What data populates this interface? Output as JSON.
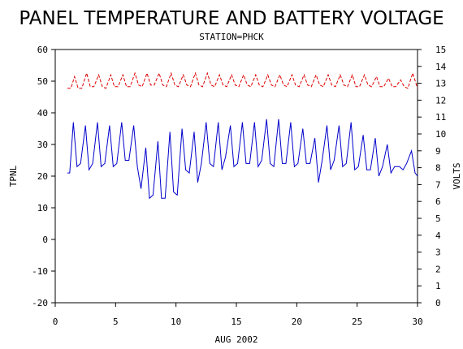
{
  "chart_data": {
    "type": "line",
    "title": "PANEL TEMPERATURE AND BATTERY VOLTAGE",
    "subtitle": "STATION=PHCK",
    "xlabel": "AUG 2002",
    "ylabel_left": "TPNL",
    "ylabel_right": "VOLTS",
    "xlim": [
      0,
      30
    ],
    "ylim_left": [
      -20,
      60
    ],
    "ylim_right": [
      0,
      15
    ],
    "x_ticks": [
      0,
      5,
      10,
      15,
      20,
      25,
      30
    ],
    "y_ticks_left": [
      -20,
      -10,
      0,
      10,
      20,
      30,
      40,
      50,
      60
    ],
    "y_ticks_right": [
      0,
      1,
      2,
      3,
      4,
      5,
      6,
      7,
      8,
      9,
      10,
      11,
      12,
      13,
      14,
      15
    ],
    "grid": false,
    "series": [
      {
        "axis": "left",
        "color": "#0000cc",
        "x": [
          1.0,
          1.2,
          1.5,
          1.8,
          2.1,
          2.5,
          2.8,
          3.1,
          3.5,
          3.8,
          4.1,
          4.5,
          4.8,
          5.1,
          5.5,
          5.8,
          6.1,
          6.5,
          6.8,
          7.1,
          7.5,
          7.8,
          8.1,
          8.5,
          8.8,
          9.1,
          9.5,
          9.8,
          10.1,
          10.5,
          10.8,
          11.1,
          11.5,
          11.8,
          12.1,
          12.5,
          12.8,
          13.1,
          13.5,
          13.8,
          14.1,
          14.5,
          14.8,
          15.1,
          15.5,
          15.8,
          16.1,
          16.5,
          16.8,
          17.1,
          17.5,
          17.8,
          18.1,
          18.5,
          18.8,
          19.1,
          19.5,
          19.8,
          20.1,
          20.5,
          20.8,
          21.1,
          21.5,
          21.8,
          22.1,
          22.5,
          22.8,
          23.1,
          23.5,
          23.8,
          24.1,
          24.5,
          24.8,
          25.1,
          25.5,
          25.8,
          26.1,
          26.5,
          26.8,
          27.1,
          27.5,
          27.8,
          28.1,
          28.5,
          28.8,
          29.1,
          29.5,
          29.8,
          30.0
        ],
        "values": [
          21,
          21,
          37,
          23,
          24,
          36,
          22,
          24,
          37,
          23,
          24,
          36,
          23,
          24,
          37,
          25,
          25,
          36,
          23,
          16,
          29,
          13,
          14,
          31,
          13,
          13,
          34,
          15,
          14,
          35,
          22,
          21,
          34,
          18,
          24,
          37,
          24,
          23,
          37,
          22,
          26,
          36,
          23,
          24,
          37,
          24,
          24,
          37,
          23,
          25,
          38,
          24,
          23,
          38,
          24,
          24,
          37,
          23,
          24,
          35,
          24,
          24,
          32,
          18,
          25,
          36,
          22,
          25,
          36,
          23,
          24,
          37,
          22,
          23,
          33,
          22,
          22,
          32,
          20,
          23,
          30,
          21,
          23,
          23,
          22,
          24,
          28,
          21,
          20
        ]
      },
      {
        "axis": "right",
        "color": "#dd0000",
        "x": [
          1.0,
          1.3,
          1.6,
          1.9,
          2.2,
          2.6,
          2.9,
          3.2,
          3.6,
          3.9,
          4.2,
          4.6,
          4.9,
          5.2,
          5.6,
          5.9,
          6.2,
          6.6,
          6.9,
          7.2,
          7.6,
          7.9,
          8.2,
          8.6,
          8.9,
          9.2,
          9.6,
          9.9,
          10.2,
          10.6,
          10.9,
          11.2,
          11.6,
          11.9,
          12.2,
          12.6,
          12.9,
          13.2,
          13.6,
          13.9,
          14.2,
          14.6,
          14.9,
          15.2,
          15.6,
          15.9,
          16.2,
          16.6,
          16.9,
          17.2,
          17.6,
          17.9,
          18.2,
          18.6,
          18.9,
          19.2,
          19.6,
          19.9,
          20.2,
          20.6,
          20.9,
          21.2,
          21.6,
          21.9,
          22.2,
          22.6,
          22.9,
          23.2,
          23.6,
          23.9,
          24.2,
          24.6,
          24.9,
          25.2,
          25.6,
          25.9,
          26.2,
          26.6,
          26.9,
          27.2,
          27.6,
          27.9,
          28.2,
          28.6,
          28.9,
          29.2,
          29.6,
          30.0
        ],
        "values": [
          12.7,
          12.7,
          13.4,
          12.7,
          12.7,
          13.6,
          12.8,
          12.8,
          13.5,
          12.8,
          12.7,
          13.5,
          12.8,
          12.8,
          13.5,
          12.8,
          12.8,
          13.6,
          12.9,
          12.8,
          13.6,
          12.9,
          12.9,
          13.6,
          12.9,
          12.8,
          13.6,
          12.9,
          12.8,
          13.5,
          12.9,
          12.8,
          13.6,
          12.9,
          12.8,
          13.6,
          12.9,
          12.8,
          13.5,
          12.9,
          12.8,
          13.5,
          12.9,
          12.8,
          13.5,
          12.9,
          12.8,
          13.5,
          12.9,
          12.8,
          13.5,
          12.9,
          12.8,
          13.5,
          12.9,
          12.8,
          13.5,
          12.9,
          12.8,
          13.5,
          12.9,
          12.8,
          13.5,
          12.9,
          12.8,
          13.5,
          12.9,
          12.8,
          13.5,
          12.9,
          12.8,
          13.5,
          12.8,
          12.8,
          13.5,
          12.9,
          12.8,
          13.4,
          12.8,
          12.8,
          13.3,
          12.8,
          12.8,
          13.2,
          12.8,
          12.7,
          13.6,
          12.7
        ]
      }
    ]
  }
}
